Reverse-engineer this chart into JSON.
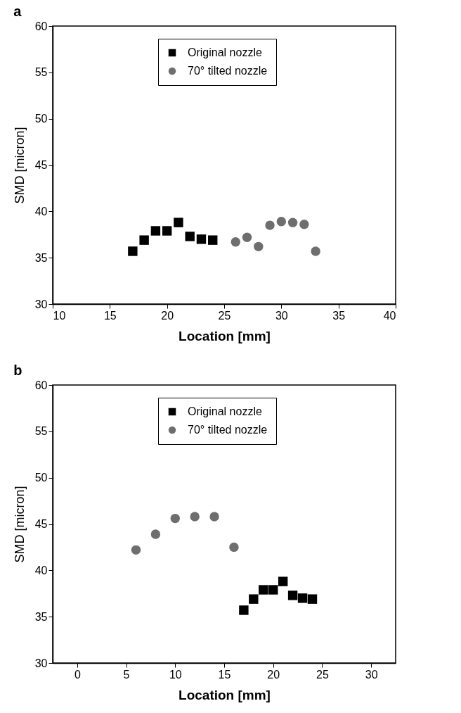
{
  "chart_data": [
    {
      "type": "scatter",
      "title": "a",
      "xlabel": "Location [mm]",
      "ylabel": "SMD [micron]",
      "xlim": [
        10,
        40
      ],
      "xticks": [
        10,
        15,
        20,
        25,
        30,
        35,
        40
      ],
      "ylim": [
        30,
        60
      ],
      "yticks": [
        30,
        35,
        40,
        45,
        50,
        55,
        60
      ],
      "grid": false,
      "legend": "top",
      "series": [
        {
          "name": "Original nozzle",
          "color": "#000000",
          "marker": "square",
          "x": [
            17,
            18,
            19,
            20,
            21,
            22,
            23,
            24
          ],
          "values": [
            35.7,
            36.9,
            37.9,
            37.9,
            38.8,
            37.3,
            37.0,
            36.9
          ]
        },
        {
          "name": "70° tilted nozzle",
          "color": "#6e6e6e",
          "marker": "circle",
          "x": [
            26,
            27,
            28,
            29,
            30,
            31,
            32,
            33
          ],
          "values": [
            36.7,
            37.2,
            36.2,
            38.5,
            38.9,
            38.8,
            38.6,
            35.7
          ]
        }
      ]
    },
    {
      "type": "scatter",
      "title": "b",
      "xlabel": "Location [mm]",
      "ylabel": "SMD [micron]",
      "xlim": [
        -2.5,
        32.5
      ],
      "xticks": [
        0,
        5,
        10,
        15,
        20,
        25,
        30
      ],
      "ylim": [
        30,
        60
      ],
      "yticks": [
        30,
        35,
        40,
        45,
        50,
        55,
        60
      ],
      "grid": false,
      "legend": "top",
      "series": [
        {
          "name": "Original nozzle",
          "color": "#000000",
          "marker": "square",
          "x": [
            17,
            18,
            19,
            20,
            21,
            22,
            23,
            24
          ],
          "values": [
            35.7,
            36.9,
            37.9,
            37.9,
            38.8,
            37.3,
            37.0,
            36.9
          ]
        },
        {
          "name": "70° tilted nozzle",
          "color": "#6e6e6e",
          "marker": "circle",
          "x": [
            6,
            8,
            10,
            12,
            14,
            16
          ],
          "values": [
            42.2,
            43.9,
            45.6,
            45.8,
            45.8,
            42.5
          ]
        }
      ]
    }
  ]
}
